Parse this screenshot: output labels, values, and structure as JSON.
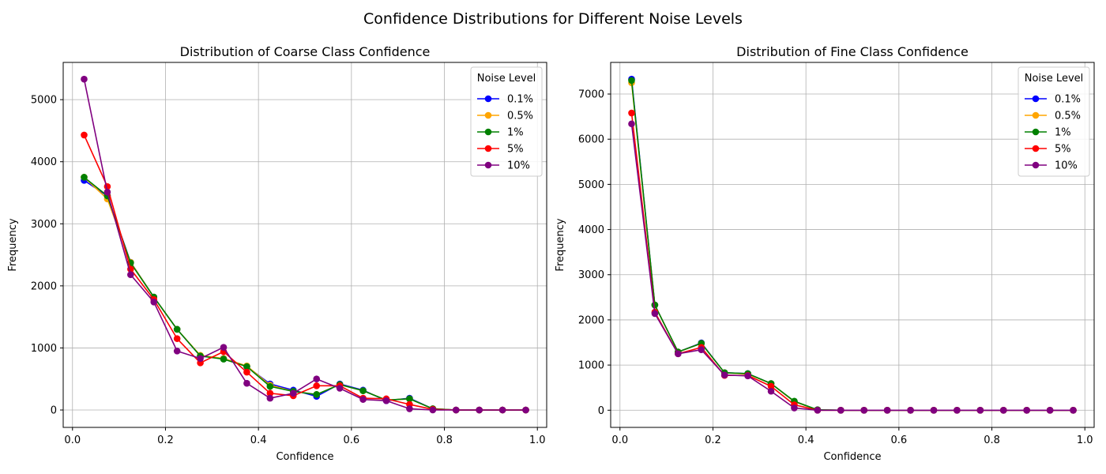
{
  "figure": {
    "suptitle": "Confidence Distributions for Different Noise Levels"
  },
  "chart_data": [
    {
      "type": "line",
      "title": "Distribution of Coarse Class Confidence",
      "xlabel": "Confidence",
      "ylabel": "Frequency",
      "xlim": [
        -0.02,
        1.02
      ],
      "ylim": [
        -280,
        5600
      ],
      "xticks": [
        0.0,
        0.2,
        0.4,
        0.6,
        0.8,
        1.0
      ],
      "xtick_labels": [
        "0.0",
        "0.2",
        "0.4",
        "0.6",
        "0.8",
        "1.0"
      ],
      "yticks": [
        0,
        1000,
        2000,
        3000,
        4000,
        5000
      ],
      "ytick_labels": [
        "0",
        "1000",
        "2000",
        "3000",
        "4000",
        "5000"
      ],
      "grid": true,
      "legend": {
        "title": "Noise Level",
        "placement": "top-right"
      },
      "x": [
        0.025,
        0.075,
        0.125,
        0.175,
        0.225,
        0.275,
        0.325,
        0.375,
        0.425,
        0.475,
        0.525,
        0.575,
        0.625,
        0.675,
        0.725,
        0.775,
        0.825,
        0.875,
        0.925,
        0.975
      ],
      "series": [
        {
          "name": "0.1%",
          "color": "#0000ff",
          "values": [
            3700,
            3450,
            2380,
            1820,
            1300,
            870,
            830,
            700,
            420,
            320,
            220,
            420,
            320,
            150,
            190,
            20,
            0,
            0,
            0,
            0
          ]
        },
        {
          "name": "0.5%",
          "color": "#ffa500",
          "values": [
            3750,
            3400,
            2380,
            1820,
            1300,
            880,
            830,
            710,
            400,
            300,
            250,
            410,
            310,
            160,
            180,
            20,
            0,
            0,
            0,
            0
          ]
        },
        {
          "name": "1%",
          "color": "#008000",
          "values": [
            3750,
            3450,
            2370,
            1820,
            1300,
            870,
            820,
            700,
            380,
            300,
            250,
            410,
            310,
            160,
            180,
            20,
            0,
            0,
            0,
            0
          ]
        },
        {
          "name": "5%",
          "color": "#ff0000",
          "values": [
            4430,
            3600,
            2270,
            1780,
            1150,
            760,
            940,
            610,
            270,
            230,
            390,
            390,
            190,
            180,
            90,
            10,
            0,
            0,
            0,
            0
          ]
        },
        {
          "name": "10%",
          "color": "#800080",
          "values": [
            5330,
            3510,
            2180,
            1740,
            950,
            830,
            1010,
            430,
            190,
            270,
            500,
            350,
            170,
            150,
            20,
            0,
            0,
            0,
            0,
            0
          ]
        }
      ]
    },
    {
      "type": "line",
      "title": "Distribution of Fine Class Confidence",
      "xlabel": "Confidence",
      "ylabel": "Frequency",
      "xlim": [
        -0.02,
        1.02
      ],
      "ylim": [
        -380,
        7700
      ],
      "xticks": [
        0.0,
        0.2,
        0.4,
        0.6,
        0.8,
        1.0
      ],
      "xtick_labels": [
        "0.0",
        "0.2",
        "0.4",
        "0.6",
        "0.8",
        "1.0"
      ],
      "yticks": [
        0,
        1000,
        2000,
        3000,
        4000,
        5000,
        6000,
        7000
      ],
      "ytick_labels": [
        "0",
        "1000",
        "2000",
        "3000",
        "4000",
        "5000",
        "6000",
        "7000"
      ],
      "grid": true,
      "legend": {
        "title": "Noise Level",
        "placement": "top-right"
      },
      "x": [
        0.025,
        0.075,
        0.125,
        0.175,
        0.225,
        0.275,
        0.325,
        0.375,
        0.425,
        0.475,
        0.525,
        0.575,
        0.625,
        0.675,
        0.725,
        0.775,
        0.825,
        0.875,
        0.925,
        0.975
      ],
      "series": [
        {
          "name": "0.1%",
          "color": "#0000ff",
          "values": [
            7330,
            2330,
            1290,
            1490,
            830,
            810,
            590,
            190,
            10,
            0,
            0,
            0,
            0,
            0,
            0,
            0,
            0,
            0,
            0,
            0
          ]
        },
        {
          "name": "0.5%",
          "color": "#ffa500",
          "values": [
            7250,
            2330,
            1290,
            1480,
            830,
            800,
            590,
            190,
            10,
            0,
            0,
            0,
            0,
            0,
            0,
            0,
            0,
            0,
            0,
            0
          ]
        },
        {
          "name": "1%",
          "color": "#008000",
          "values": [
            7300,
            2330,
            1290,
            1480,
            830,
            810,
            590,
            200,
            10,
            0,
            0,
            0,
            0,
            0,
            0,
            0,
            0,
            0,
            0,
            0
          ]
        },
        {
          "name": "5%",
          "color": "#ff0000",
          "values": [
            6580,
            2170,
            1250,
            1390,
            770,
            770,
            530,
            120,
            0,
            0,
            0,
            0,
            0,
            0,
            0,
            0,
            0,
            0,
            0,
            0
          ]
        },
        {
          "name": "10%",
          "color": "#800080",
          "values": [
            6340,
            2140,
            1250,
            1340,
            780,
            760,
            420,
            50,
            0,
            0,
            0,
            0,
            0,
            0,
            0,
            0,
            0,
            0,
            0,
            0
          ]
        }
      ]
    }
  ]
}
